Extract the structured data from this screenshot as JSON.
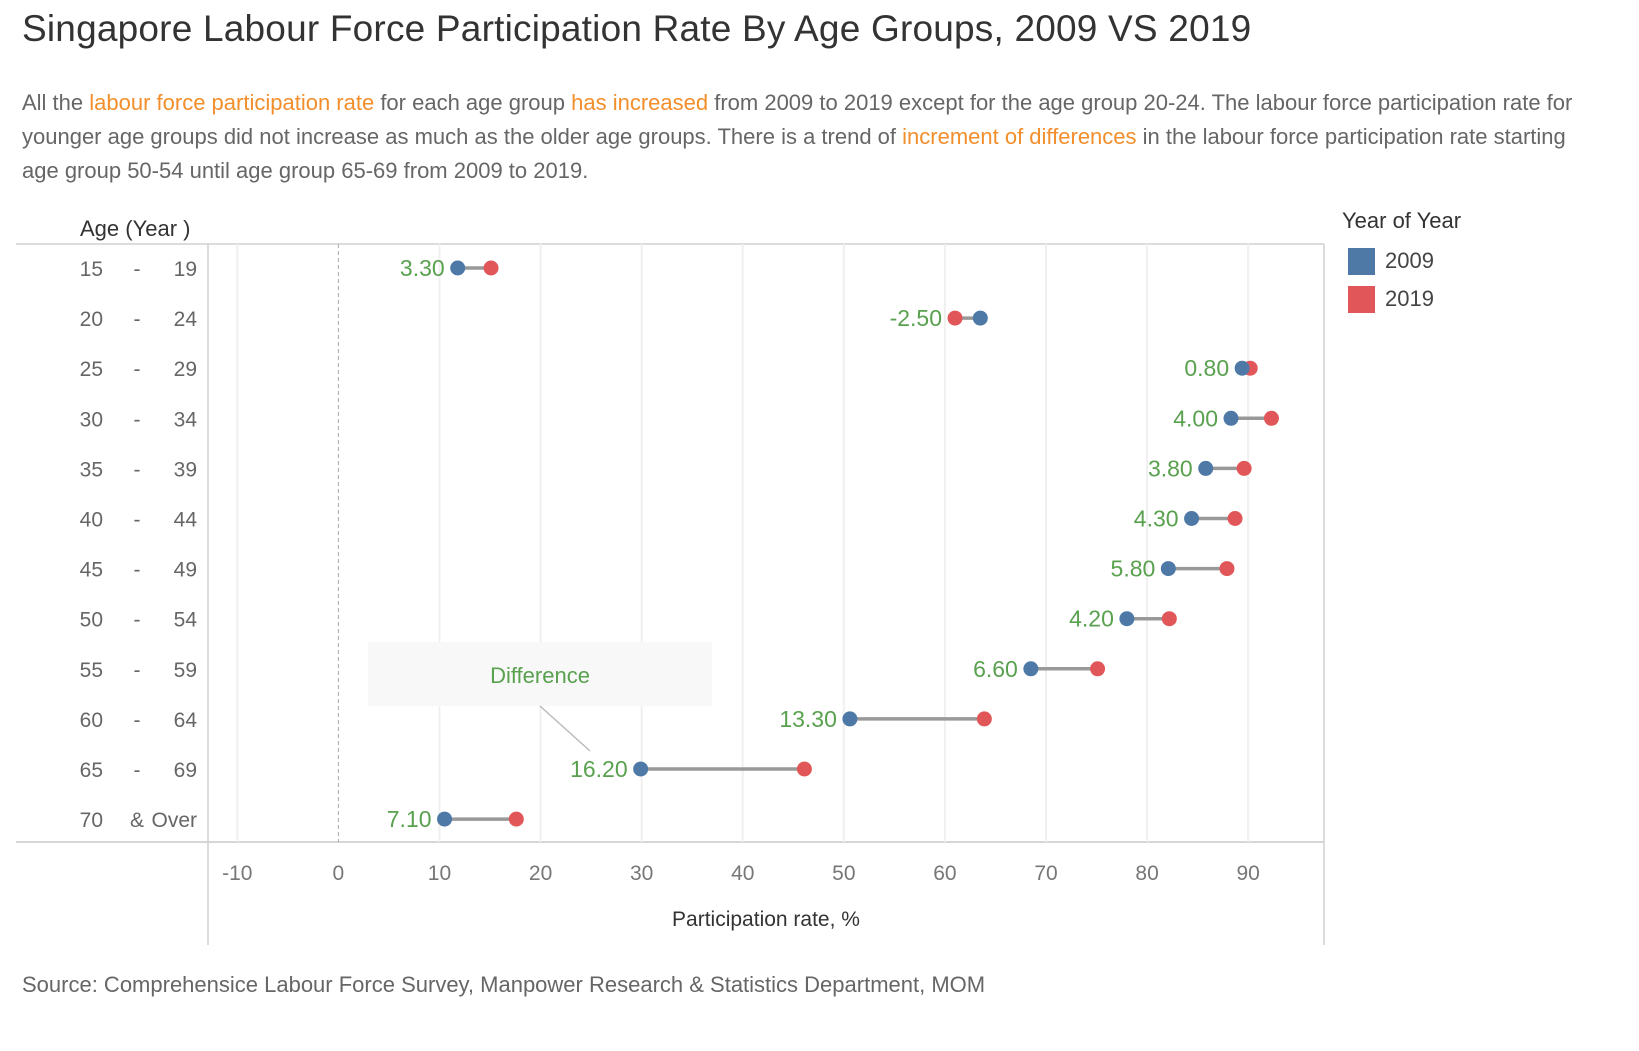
{
  "title": "Singapore Labour Force Participation Rate By Age Groups, 2009 VS 2019",
  "description": [
    {
      "text": "All the ",
      "highlight": false
    },
    {
      "text": "labour force participation rate",
      "highlight": true
    },
    {
      "text": " for each age group ",
      "highlight": false
    },
    {
      "text": "has increased",
      "highlight": true
    },
    {
      "text": " from 2009 to 2019 except for the age group 20-24. The labour force participation rate for younger age groups did not increase as much as the older age groups. There is a trend of ",
      "highlight": false
    },
    {
      "text": "increment of differences",
      "highlight": true
    },
    {
      "text": " in the labour force participation rate starting age group 50-54 until age group 65-69 from 2009 to 2019.",
      "highlight": false
    }
  ],
  "source": "Source: Comprehensice Labour Force Survey, Manpower Research & Statistics Department, MOM",
  "colors": {
    "2009": "#4e79a7",
    "2019": "#e15759",
    "label": "#59a14f",
    "highlight": "#f28e2b",
    "connector": "#999999"
  },
  "legend": {
    "title": "Year of Year",
    "items": [
      {
        "label": "2009",
        "color": "#4e79a7"
      },
      {
        "label": "2019",
        "color": "#e15759"
      }
    ]
  },
  "annotation": {
    "text": "Difference",
    "target_category": "65 - 69"
  },
  "chart_data": {
    "type": "dumbbell",
    "title": "Singapore Labour Force Participation Rate By Age Groups, 2009 VS 2019",
    "row_header": "Age (Year )",
    "xlabel": "Participation rate, %",
    "xlim": [
      -12.9,
      97.5
    ],
    "xticks": [
      -10,
      0,
      10,
      20,
      30,
      40,
      50,
      60,
      70,
      80,
      90
    ],
    "grid": true,
    "zero_line": "dashed",
    "legend_position": "right",
    "categories": [
      [
        "15",
        "-",
        "19"
      ],
      [
        "20",
        "-",
        "24"
      ],
      [
        "25",
        "-",
        "29"
      ],
      [
        "30",
        "-",
        "34"
      ],
      [
        "35",
        "-",
        "39"
      ],
      [
        "40",
        "-",
        "44"
      ],
      [
        "45",
        "-",
        "49"
      ],
      [
        "50",
        "-",
        "54"
      ],
      [
        "55",
        "-",
        "59"
      ],
      [
        "60",
        "-",
        "64"
      ],
      [
        "65",
        "-",
        "69"
      ],
      [
        "70",
        "&",
        "Over"
      ]
    ],
    "series": [
      {
        "name": "2009",
        "values": [
          11.8,
          63.5,
          89.4,
          88.3,
          85.8,
          84.4,
          82.1,
          78.0,
          68.5,
          50.6,
          29.9,
          10.5
        ]
      },
      {
        "name": "2019",
        "values": [
          15.1,
          61.0,
          90.2,
          92.3,
          89.6,
          88.7,
          87.9,
          82.2,
          75.1,
          63.9,
          46.1,
          17.6
        ]
      }
    ],
    "difference_labels": [
      "3.30",
      "-2.50",
      "0.80",
      "4.00",
      "3.80",
      "4.30",
      "5.80",
      "4.20",
      "6.60",
      "13.30",
      "16.20",
      "7.10"
    ]
  }
}
